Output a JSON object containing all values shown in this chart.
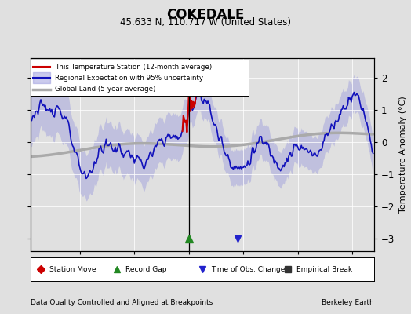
{
  "title": "COKEDALE",
  "subtitle": "45.633 N, 110.717 W (United States)",
  "xlabel_left": "Data Quality Controlled and Aligned at Breakpoints",
  "xlabel_right": "Berkeley Earth",
  "ylabel": "Temperature Anomaly (°C)",
  "xlim": [
    1880.5,
    1912
  ],
  "ylim": [
    -3.4,
    2.6
  ],
  "yticks": [
    -3,
    -2,
    -1,
    0,
    1,
    2
  ],
  "xticks": [
    1885,
    1890,
    1895,
    1900,
    1905,
    1910
  ],
  "bg_color": "#e0e0e0",
  "plot_bg_color": "#e0e0e0",
  "regional_color": "#1111bb",
  "regional_fill_color": "#9999dd",
  "station_color": "#cc0000",
  "global_color": "#aaaaaa",
  "vline_x": 1895,
  "record_gap_x": 1895,
  "record_gap_y": -3.0,
  "time_obs_change_x": 1899.5,
  "time_obs_change_y": -3.0,
  "station_segment_start": 1894.5,
  "station_segment_end": 1895.7,
  "legend_items": [
    {
      "label": "This Temperature Station (12-month average)",
      "color": "#cc0000",
      "lw": 1.5
    },
    {
      "label": "Regional Expectation with 95% uncertainty",
      "color": "#1111bb",
      "lw": 1.5
    },
    {
      "label": "Global Land (5-year average)",
      "color": "#aaaaaa",
      "lw": 2.5
    }
  ],
  "marker_items": [
    {
      "label": "Station Move",
      "marker": "D",
      "color": "#cc0000"
    },
    {
      "label": "Record Gap",
      "marker": "^",
      "color": "#228822"
    },
    {
      "label": "Time of Obs. Change",
      "marker": "v",
      "color": "#2222cc"
    },
    {
      "label": "Empirical Break",
      "marker": "s",
      "color": "#333333"
    }
  ]
}
